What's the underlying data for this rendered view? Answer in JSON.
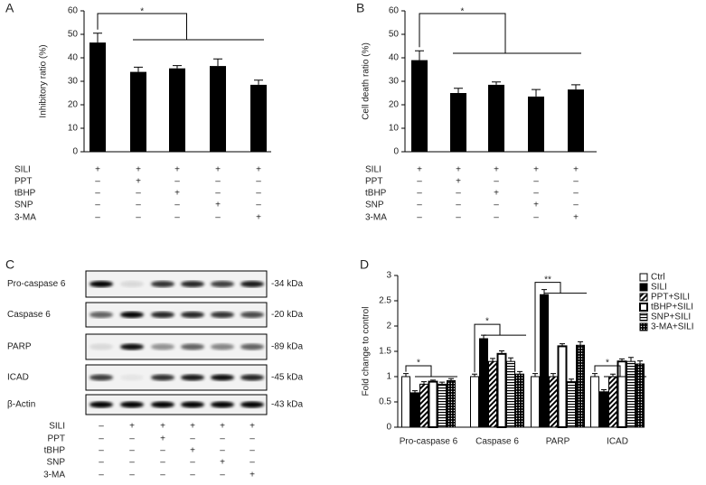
{
  "chart_data": [
    {
      "type": "bar",
      "panel": "A",
      "ylabel": "Inhibitory ratio (%)",
      "values": [
        46.5,
        34,
        35.5,
        36.5,
        28.5
      ],
      "errors": [
        4,
        2,
        1.2,
        3,
        2
      ],
      "color": "#000000",
      "ylim": [
        0,
        60
      ],
      "yticks": [
        0,
        10,
        20,
        30,
        40,
        50,
        60
      ],
      "annotations": [
        "*"
      ],
      "treatments": [
        {
          "name": "SILI",
          "marks": [
            "+",
            "+",
            "+",
            "+",
            "+"
          ]
        },
        {
          "name": "PPT",
          "marks": [
            "–",
            "+",
            "–",
            "–",
            "–"
          ]
        },
        {
          "name": "tBHP",
          "marks": [
            "–",
            "–",
            "+",
            "–",
            "–"
          ]
        },
        {
          "name": "SNP",
          "marks": [
            "–",
            "–",
            "–",
            "+",
            "–"
          ]
        },
        {
          "name": "3-MA",
          "marks": [
            "–",
            "–",
            "–",
            "–",
            "+"
          ]
        }
      ]
    },
    {
      "type": "bar",
      "panel": "B",
      "ylabel": "Cell death ratio (%)",
      "values": [
        39,
        25,
        28.5,
        23.5,
        26.5
      ],
      "errors": [
        4,
        2,
        1.2,
        3,
        2
      ],
      "color": "#000000",
      "ylim": [
        0,
        60
      ],
      "yticks": [
        0,
        10,
        20,
        30,
        40,
        50,
        60
      ],
      "annotations": [
        "*"
      ],
      "treatments": [
        {
          "name": "SILI",
          "marks": [
            "+",
            "+",
            "+",
            "+",
            "+"
          ]
        },
        {
          "name": "PPT",
          "marks": [
            "–",
            "+",
            "–",
            "–",
            "–"
          ]
        },
        {
          "name": "tBHP",
          "marks": [
            "–",
            "–",
            "+",
            "–",
            "–"
          ]
        },
        {
          "name": "SNP",
          "marks": [
            "–",
            "–",
            "–",
            "+",
            "–"
          ]
        },
        {
          "name": "3-MA",
          "marks": [
            "–",
            "–",
            "–",
            "–",
            "+"
          ]
        }
      ]
    },
    {
      "type": "grouped_bar",
      "panel": "D",
      "ylabel": "Fold change to control",
      "categories": [
        "Pro-caspase 6",
        "Caspase 6",
        "PARP",
        "ICAD"
      ],
      "series": [
        {
          "name": "Ctrl",
          "color": "#000000",
          "fill": "none",
          "values": [
            1.0,
            1.0,
            1.0,
            1.0
          ],
          "errors": [
            0.06,
            0.05,
            0.06,
            0.06
          ]
        },
        {
          "name": "SILI",
          "color": "#000000",
          "fill": "solid",
          "values": [
            0.68,
            1.75,
            2.62,
            0.7
          ],
          "errors": [
            0.04,
            0.07,
            0.1,
            0.04
          ]
        },
        {
          "name": "PPT+SILI",
          "color": "#000000",
          "fill": "diagonal",
          "values": [
            0.85,
            1.3,
            1.0,
            1.0
          ],
          "errors": [
            0.05,
            0.06,
            0.06,
            0.05
          ]
        },
        {
          "name": "tBHP+SILI",
          "color": "#000000",
          "fill": "outline",
          "values": [
            0.9,
            1.45,
            1.6,
            1.3
          ],
          "errors": [
            0.03,
            0.06,
            0.05,
            0.05
          ]
        },
        {
          "name": "SNP+SILI",
          "color": "#000000",
          "fill": "horizontal",
          "values": [
            0.85,
            1.3,
            0.9,
            1.3
          ],
          "errors": [
            0.04,
            0.07,
            0.05,
            0.08
          ]
        },
        {
          "name": "3-MA+SILI",
          "color": "#000000",
          "fill": "dots",
          "values": [
            0.92,
            1.05,
            1.62,
            1.25
          ],
          "errors": [
            0.04,
            0.05,
            0.07,
            0.06
          ]
        }
      ],
      "ylim": [
        0,
        3
      ],
      "yticks": [
        0,
        0.5,
        1,
        1.5,
        2,
        2.5,
        3
      ],
      "legend": "right",
      "annotations": [
        "*",
        "*",
        "**",
        "*"
      ]
    }
  ],
  "blot": {
    "panel": "C",
    "rows": [
      {
        "label": "Pro-caspase 6",
        "kda": "-34 kDa"
      },
      {
        "label": "Caspase 6",
        "kda": "-20 kDa"
      },
      {
        "label": "PARP",
        "kda": "-89 kDa"
      },
      {
        "label": "ICAD",
        "kda": "-45 kDa"
      },
      {
        "label": "β-Actin",
        "kda": "-43 kDa"
      }
    ],
    "treatments": [
      {
        "name": "SILI",
        "marks": [
          "–",
          "+",
          "+",
          "+",
          "+",
          "+"
        ]
      },
      {
        "name": "PPT",
        "marks": [
          "–",
          "–",
          "+",
          "–",
          "–",
          "–"
        ]
      },
      {
        "name": "tBHP",
        "marks": [
          "–",
          "–",
          "–",
          "+",
          "–",
          "–"
        ]
      },
      {
        "name": "SNP",
        "marks": [
          "–",
          "–",
          "–",
          "–",
          "+",
          "–"
        ]
      },
      {
        "name": "3-MA",
        "marks": [
          "–",
          "–",
          "–",
          "–",
          "–",
          "+"
        ]
      }
    ]
  }
}
